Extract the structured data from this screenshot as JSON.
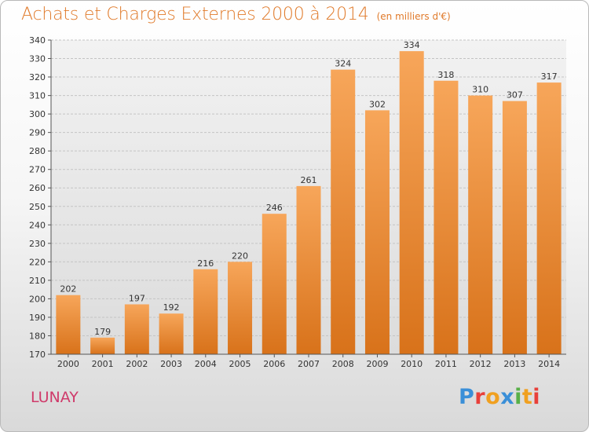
{
  "header": {
    "title": "Achats et Charges Externes 2000 à 2014",
    "unit": "(en milliers d'€)"
  },
  "footer": {
    "commune": "LUNAY",
    "logo_letters": [
      {
        "ch": "P",
        "color": "#3a8fd8"
      },
      {
        "ch": "r",
        "color": "#e8403a"
      },
      {
        "ch": "o",
        "color": "#f0a020"
      },
      {
        "ch": "x",
        "color": "#3a8fd8"
      },
      {
        "ch": "i",
        "color": "#58b048"
      },
      {
        "ch": "t",
        "color": "#f0a020"
      },
      {
        "ch": "i",
        "color": "#e8403a"
      }
    ]
  },
  "colors": {
    "bar_top": "#f7a65a",
    "bar_bottom": "#d8721a",
    "title": "#e07a2a",
    "commune": "#cf3a6a"
  },
  "chart_data": {
    "type": "bar",
    "title": "Achats et Charges Externes 2000 à 2014",
    "subtitle": "(en milliers d'€)",
    "categories": [
      "2000",
      "2001",
      "2002",
      "2003",
      "2004",
      "2005",
      "2006",
      "2007",
      "2008",
      "2009",
      "2010",
      "2011",
      "2012",
      "2013",
      "2014"
    ],
    "values": [
      202,
      179,
      197,
      192,
      216,
      220,
      246,
      261,
      324,
      302,
      334,
      318,
      310,
      307,
      317
    ],
    "ylim": [
      170,
      340
    ],
    "yticks": [
      170,
      180,
      190,
      200,
      210,
      220,
      230,
      240,
      250,
      260,
      270,
      280,
      290,
      300,
      310,
      320,
      330,
      340
    ],
    "grid": true,
    "legend": "none"
  }
}
